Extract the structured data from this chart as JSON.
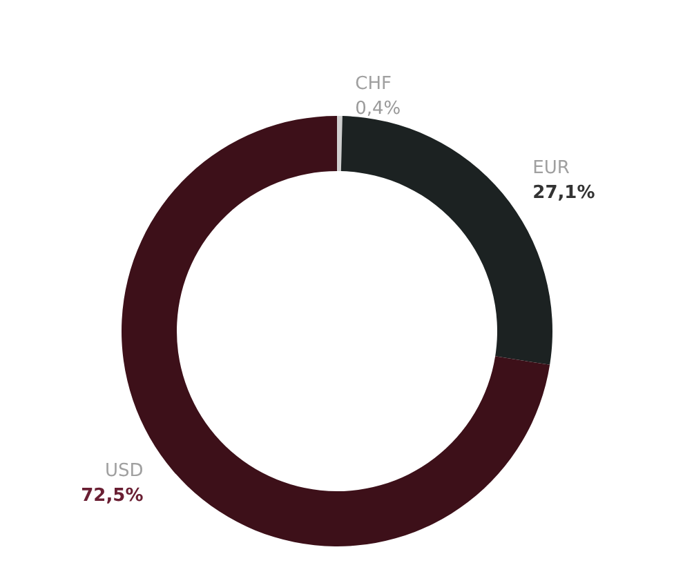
{
  "chart_data": {
    "type": "donut",
    "categories": [
      "CHF",
      "EUR",
      "USD"
    ],
    "values": [
      0.4,
      27.1,
      72.5
    ],
    "colors": [
      "#cfcfcf",
      "#1c2222",
      "#3d1019"
    ],
    "value_labels": [
      "0,4%",
      "27,1%",
      "72,5%"
    ],
    "legend": false
  }
}
